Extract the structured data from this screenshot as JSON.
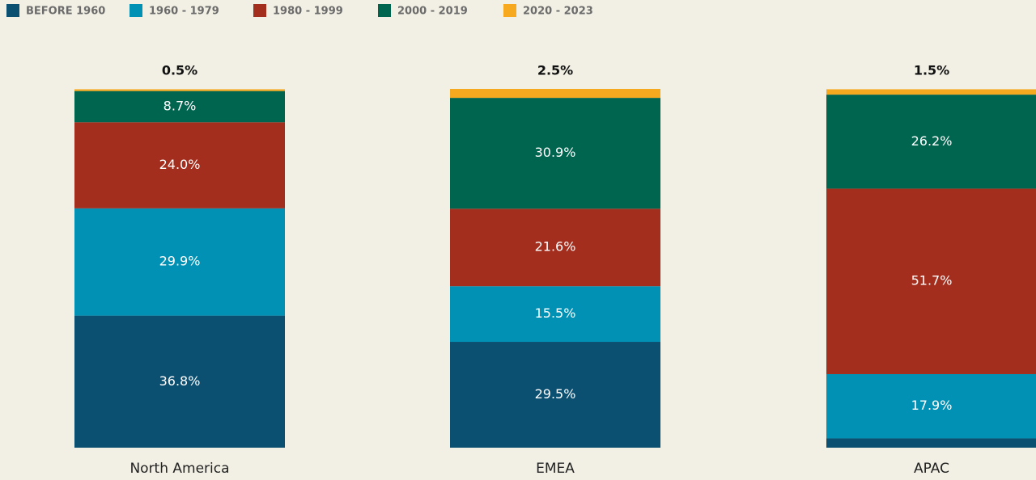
{
  "chart_data": {
    "type": "stacked_bar",
    "categories": [
      "North America",
      "EMEA",
      "APAC"
    ],
    "ylim": [
      0,
      100
    ],
    "series": [
      {
        "name": "BEFORE 1960",
        "color": "#0b4f71",
        "values": [
          36.8,
          29.5,
          2.6
        ],
        "value_labels": [
          "36.8%",
          "29.5%",
          "2.6%"
        ]
      },
      {
        "name": "1960 - 1979",
        "color": "#0091b5",
        "values": [
          29.9,
          15.5,
          17.9
        ],
        "value_labels": [
          "29.9%",
          "15.5%",
          "17.9%"
        ]
      },
      {
        "name": "1980 - 1999",
        "color": "#a32e1e",
        "values": [
          24.0,
          21.6,
          51.7
        ],
        "value_labels": [
          "24.0%",
          "21.6%",
          "51.7%"
        ]
      },
      {
        "name": "2000 - 2019",
        "color": "#00654f",
        "values": [
          8.7,
          30.9,
          26.2
        ],
        "value_labels": [
          "8.7%",
          "30.9%",
          "26.2%"
        ]
      },
      {
        "name": "2020 - 2023",
        "color": "#f6a81f",
        "values": [
          0.5,
          2.5,
          1.5
        ],
        "value_labels": [
          "0.5%",
          "2.5%",
          "1.5%"
        ]
      }
    ]
  }
}
